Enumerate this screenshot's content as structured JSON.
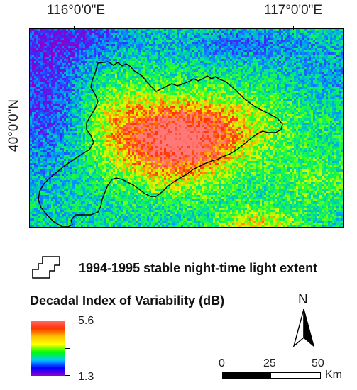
{
  "map": {
    "lon_labels": [
      "116°0'0\"E",
      "117°0'0\"E"
    ],
    "lat_label": "40°0'0\"N",
    "has_grid_ticks": true
  },
  "boundary_legend": {
    "label": "1994-1995 stable night-time light extent"
  },
  "color_legend": {
    "title": "Decadal Index of Variability (dB)",
    "max_label": "5.6",
    "min_label": "1.3",
    "colors": [
      "#ff6c6c",
      "#ff3300",
      "#ffc000",
      "#ffff00",
      "#00ff00",
      "#00c8ff",
      "#0000ff",
      "#9400d3"
    ]
  },
  "north_arrow": {
    "label": "N"
  },
  "scale_bar": {
    "labels": [
      "0",
      "25",
      "50"
    ],
    "unit": "Km"
  }
}
